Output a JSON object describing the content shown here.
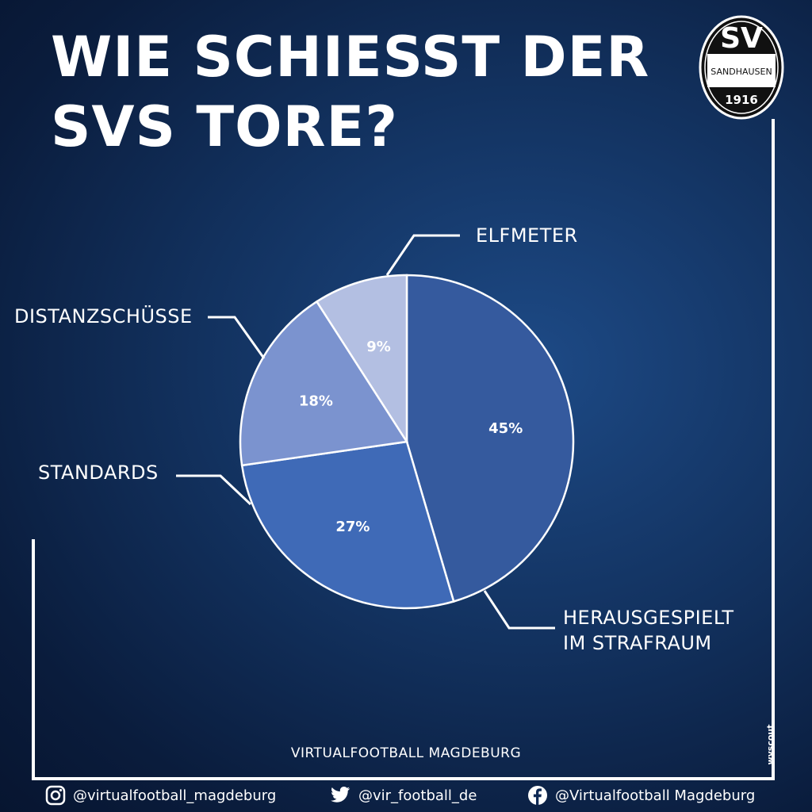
{
  "title": {
    "line1": "WIE SCHIESST DER",
    "line2": "SVS TORE?"
  },
  "logo": {
    "top": "SV",
    "middle": "SANDHAUSEN",
    "year": "1916"
  },
  "chart_data": {
    "type": "pie",
    "title": "WIE SCHIESST DER SVS TORE?",
    "slices": [
      {
        "label": "HERAUSGESPIELT IM STRAFRAUM",
        "value": 45,
        "display": "45%",
        "color": "#355a9e"
      },
      {
        "label": "STANDARDS",
        "value": 27,
        "display": "27%",
        "color": "#3f6ab7"
      },
      {
        "label": "DISTANZSCHÜSSE",
        "value": 18,
        "display": "18%",
        "color": "#7b93cf"
      },
      {
        "label": "ELFMETER",
        "value": 9,
        "display": "9%",
        "color": "#b3bfe2"
      }
    ]
  },
  "labels": {
    "elfmeter": "ELFMETER",
    "distanz": "DISTANZSCHÜSSE",
    "standards": "STANDARDS",
    "heraus_line1": "HERAUSGESPIELT",
    "heraus_line2": "IM STRAFRAUM"
  },
  "footer": {
    "brand": "VIRTUALFOOTBALL MAGDEBURG",
    "wyscout": "wyscout",
    "instagram": "@virtualfootball_magdeburg",
    "twitter": "@vir_football_de",
    "facebook": "@Virtualfootball Magdeburg"
  }
}
